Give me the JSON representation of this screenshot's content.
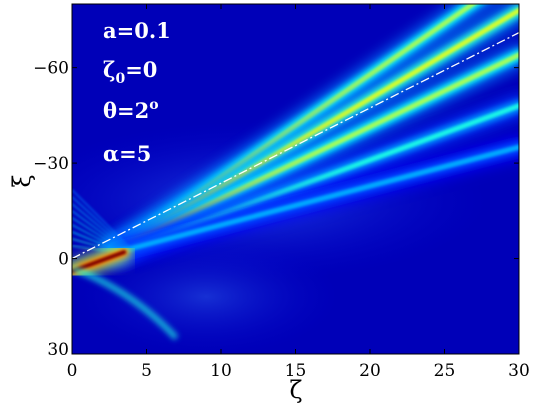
{
  "chart_data": {
    "type": "heatmap",
    "title": "",
    "xlabel": "ζ",
    "ylabel": "ξ",
    "xlim": [
      0,
      30
    ],
    "ylim": [
      -80,
      30
    ],
    "y_axis_inverted": true,
    "grid": false,
    "colormap": "jet",
    "x_ticks": [
      0,
      5,
      10,
      15,
      20,
      25,
      30
    ],
    "x_tick_labels": [
      "0",
      "5",
      "10",
      "15",
      "20",
      "25",
      "30"
    ],
    "y_ticks": [
      -60,
      -30,
      0,
      30
    ],
    "y_tick_labels": [
      "−60",
      "−30",
      "0",
      "30"
    ],
    "annotations": [
      {
        "id": "a",
        "parts": [
          {
            "text": "a=0.1"
          }
        ]
      },
      {
        "id": "zeta0",
        "parts": [
          {
            "text": "ζ"
          },
          {
            "text": "0",
            "sub": true
          },
          {
            "text": "=0"
          }
        ]
      },
      {
        "id": "theta",
        "parts": [
          {
            "text": "θ=2"
          },
          {
            "text": "o",
            "sup": true
          }
        ]
      },
      {
        "id": "alpha",
        "parts": [
          {
            "text": "α=5"
          }
        ]
      }
    ],
    "reference_line": {
      "style": "dash-dot",
      "color": "#ffffff",
      "x": [
        0,
        30
      ],
      "y": [
        0,
        -71
      ]
    },
    "beams": [
      {
        "x": [
          3,
          30
        ],
        "y": [
          -3,
          -90
        ],
        "peak": 0.55
      },
      {
        "x": [
          3,
          30
        ],
        "y": [
          -3,
          -78
        ],
        "peak": 0.6
      },
      {
        "x": [
          3,
          30
        ],
        "y": [
          -3,
          -64
        ],
        "peak": 0.55
      },
      {
        "x": [
          3,
          30
        ],
        "y": [
          -2,
          -48
        ],
        "peak": 0.4
      },
      {
        "x": [
          3,
          30
        ],
        "y": [
          -2,
          -35
        ],
        "peak": 0.3
      }
    ],
    "source_peak": {
      "x": [
        0,
        3.5
      ],
      "xi": [
        4,
        -2
      ],
      "peak": 1.0
    }
  }
}
